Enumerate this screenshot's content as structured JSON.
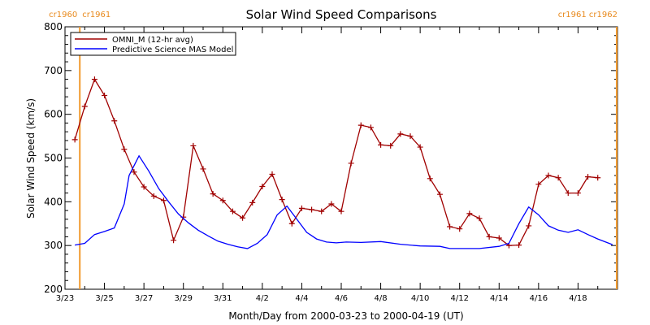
{
  "chart_data": {
    "type": "line",
    "title": "Solar Wind Speed Comparisons",
    "xlabel": "Month/Day from 2000-03-23 to 2000-04-19 (UT)",
    "ylabel": "Solar Wind Speed (km/s)",
    "ylim": [
      200,
      800
    ],
    "yticks": [
      200,
      300,
      400,
      500,
      600,
      700,
      800
    ],
    "xlim": [
      "2000-03-23",
      "2000-04-19"
    ],
    "xticks": [
      {
        "date": "2000-03-23",
        "label": "3/23"
      },
      {
        "date": "2000-03-25",
        "label": "3/25"
      },
      {
        "date": "2000-03-27",
        "label": "3/27"
      },
      {
        "date": "2000-03-29",
        "label": "3/29"
      },
      {
        "date": "2000-03-31",
        "label": "3/31"
      },
      {
        "date": "2000-04-02",
        "label": "4/2"
      },
      {
        "date": "2000-04-04",
        "label": "4/4"
      },
      {
        "date": "2000-04-06",
        "label": "4/6"
      },
      {
        "date": "2000-04-08",
        "label": "4/8"
      },
      {
        "date": "2000-04-10",
        "label": "4/10"
      },
      {
        "date": "2000-04-12",
        "label": "4/12"
      },
      {
        "date": "2000-04-14",
        "label": "4/14"
      },
      {
        "date": "2000-04-16",
        "label": "4/16"
      },
      {
        "date": "2000-04-18",
        "label": "4/18"
      }
    ],
    "carrington_markers": [
      {
        "date": "2000-03-23 18:00",
        "label_left": "cr1960",
        "label_right": "cr1961",
        "label_side": "left"
      },
      {
        "date": "2000-04-19 23:00",
        "label_left": "cr1961",
        "label_right": "cr1962",
        "label_side": "right"
      }
    ],
    "legend_position": "top-left",
    "series": [
      {
        "name": "OMNI_M (12-hr avg)",
        "color": "#a00000",
        "marker": "plus",
        "points": [
          [
            "2000-03-23 12:00",
            542
          ],
          [
            "2000-03-24 00:00",
            618
          ],
          [
            "2000-03-24 12:00",
            680
          ],
          [
            "2000-03-25 00:00",
            643
          ],
          [
            "2000-03-25 12:00",
            585
          ],
          [
            "2000-03-26 00:00",
            520
          ],
          [
            "2000-03-26 12:00",
            468
          ],
          [
            "2000-03-27 00:00",
            434
          ],
          [
            "2000-03-27 12:00",
            413
          ],
          [
            "2000-03-28 00:00",
            403
          ],
          [
            "2000-03-28 12:00",
            312
          ],
          [
            "2000-03-29 00:00",
            365
          ],
          [
            "2000-03-29 12:00",
            528
          ],
          [
            "2000-03-30 00:00",
            475
          ],
          [
            "2000-03-30 12:00",
            418
          ],
          [
            "2000-03-31 00:00",
            403
          ],
          [
            "2000-03-31 12:00",
            378
          ],
          [
            "2000-04-01 00:00",
            363
          ],
          [
            "2000-04-01 12:00",
            398
          ],
          [
            "2000-04-02 00:00",
            435
          ],
          [
            "2000-04-02 12:00",
            463
          ],
          [
            "2000-04-03 00:00",
            405
          ],
          [
            "2000-04-03 12:00",
            350
          ],
          [
            "2000-04-04 00:00",
            385
          ],
          [
            "2000-04-04 12:00",
            382
          ],
          [
            "2000-04-05 00:00",
            378
          ],
          [
            "2000-04-05 12:00",
            395
          ],
          [
            "2000-04-06 00:00",
            378
          ],
          [
            "2000-04-06 12:00",
            488
          ],
          [
            "2000-04-07 00:00",
            575
          ],
          [
            "2000-04-07 12:00",
            570
          ],
          [
            "2000-04-08 00:00",
            530
          ],
          [
            "2000-04-08 12:00",
            528
          ],
          [
            "2000-04-09 00:00",
            555
          ],
          [
            "2000-04-09 12:00",
            550
          ],
          [
            "2000-04-10 00:00",
            525
          ],
          [
            "2000-04-10 12:00",
            453
          ],
          [
            "2000-04-11 00:00",
            417
          ],
          [
            "2000-04-11 12:00",
            343
          ],
          [
            "2000-04-12 00:00",
            338
          ],
          [
            "2000-04-12 12:00",
            373
          ],
          [
            "2000-04-13 00:00",
            362
          ],
          [
            "2000-04-13 12:00",
            320
          ],
          [
            "2000-04-14 00:00",
            317
          ],
          [
            "2000-04-14 12:00",
            300
          ],
          [
            "2000-04-15 00:00",
            301
          ],
          [
            "2000-04-15 12:00",
            345
          ],
          [
            "2000-04-16 00:00",
            440
          ],
          [
            "2000-04-16 12:00",
            460
          ],
          [
            "2000-04-17 00:00",
            455
          ],
          [
            "2000-04-17 12:00",
            420
          ],
          [
            "2000-04-18 00:00",
            420
          ],
          [
            "2000-04-18 12:00",
            457
          ],
          [
            "2000-04-19 00:00",
            455
          ]
        ]
      },
      {
        "name": "Predictive Science MAS Model",
        "color": "#0000ff",
        "marker": "none",
        "points": [
          [
            "2000-03-23 12:00",
            301
          ],
          [
            "2000-03-24 00:00",
            305
          ],
          [
            "2000-03-24 12:00",
            325
          ],
          [
            "2000-03-25 00:00",
            332
          ],
          [
            "2000-03-25 12:00",
            340
          ],
          [
            "2000-03-26 00:00",
            395
          ],
          [
            "2000-03-26 06:00",
            460
          ],
          [
            "2000-03-26 18:00",
            505
          ],
          [
            "2000-03-27 06:00",
            470
          ],
          [
            "2000-03-27 18:00",
            430
          ],
          [
            "2000-03-28 06:00",
            400
          ],
          [
            "2000-03-28 18:00",
            372
          ],
          [
            "2000-03-29 06:00",
            352
          ],
          [
            "2000-03-29 18:00",
            335
          ],
          [
            "2000-03-30 06:00",
            322
          ],
          [
            "2000-03-30 18:00",
            310
          ],
          [
            "2000-03-31 06:00",
            303
          ],
          [
            "2000-03-31 18:00",
            297
          ],
          [
            "2000-04-01 06:00",
            293
          ],
          [
            "2000-04-01 18:00",
            305
          ],
          [
            "2000-04-02 06:00",
            325
          ],
          [
            "2000-04-02 18:00",
            370
          ],
          [
            "2000-04-03 06:00",
            390
          ],
          [
            "2000-04-03 18:00",
            360
          ],
          [
            "2000-04-04 06:00",
            330
          ],
          [
            "2000-04-04 18:00",
            315
          ],
          [
            "2000-04-05 06:00",
            308
          ],
          [
            "2000-04-05 18:00",
            306
          ],
          [
            "2000-04-06 06:00",
            308
          ],
          [
            "2000-04-07 00:00",
            307
          ],
          [
            "2000-04-08 00:00",
            309
          ],
          [
            "2000-04-09 00:00",
            303
          ],
          [
            "2000-04-10 00:00",
            299
          ],
          [
            "2000-04-11 00:00",
            298
          ],
          [
            "2000-04-11 12:00",
            293
          ],
          [
            "2000-04-12 00:00",
            293
          ],
          [
            "2000-04-13 00:00",
            293
          ],
          [
            "2000-04-14 00:00",
            298
          ],
          [
            "2000-04-14 12:00",
            305
          ],
          [
            "2000-04-15 00:00",
            350
          ],
          [
            "2000-04-15 12:00",
            388
          ],
          [
            "2000-04-16 00:00",
            370
          ],
          [
            "2000-04-16 12:00",
            345
          ],
          [
            "2000-04-17 00:00",
            335
          ],
          [
            "2000-04-17 12:00",
            330
          ],
          [
            "2000-04-18 00:00",
            336
          ],
          [
            "2000-04-18 12:00",
            325
          ],
          [
            "2000-04-19 00:00",
            315
          ],
          [
            "2000-04-19 18:00",
            302
          ]
        ]
      }
    ]
  }
}
